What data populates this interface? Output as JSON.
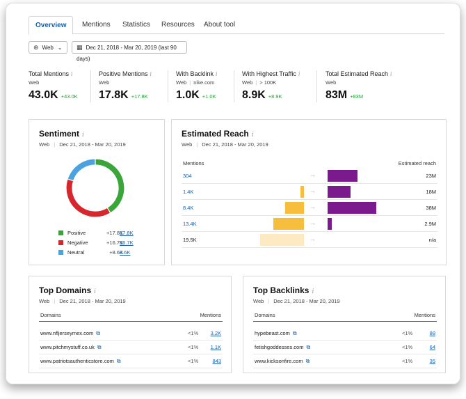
{
  "tabs": [
    "Overview",
    "Mentions",
    "Statistics",
    "Resources",
    "About tool"
  ],
  "filters": {
    "source": "Web",
    "date_range": "Dec 21, 2018 - Mar 20, 2019 (last 90 days)"
  },
  "info_glyph": "i",
  "metrics": [
    {
      "label": "Total Mentions",
      "sub": "Web",
      "sub2": "",
      "value": "43.0K",
      "delta": "+43.0K"
    },
    {
      "label": "Positive Mentions",
      "sub": "Web",
      "sub2": "",
      "value": "17.8K",
      "delta": "+17.8K"
    },
    {
      "label": "With Backlink",
      "sub": "Web",
      "sub2": "nike.com",
      "value": "1.0K",
      "delta": "+1.0K"
    },
    {
      "label": "With Highest Traffic",
      "sub": "Web",
      "sub2": "> 100K",
      "value": "8.9K",
      "delta": "+8.9K"
    },
    {
      "label": "Total Estimated Reach",
      "sub": "Web",
      "sub2": "",
      "value": "83M",
      "delta": "+83M"
    }
  ],
  "sentiment": {
    "title": "Sentiment",
    "source": "Web",
    "dates": "Dec 21, 2018 - Mar 20, 2019",
    "items": [
      {
        "name": "Positive",
        "delta": "+17.8K",
        "total": "17.8K",
        "value": 17.8,
        "color": "#3aa63a"
      },
      {
        "name": "Negative",
        "delta": "+16.7K",
        "total": "16.7K",
        "value": 16.7,
        "color": "#d6272e"
      },
      {
        "name": "Neutral",
        "delta": "+8.6K",
        "total": "8.6K",
        "value": 8.6,
        "color": "#4aa3e0"
      }
    ]
  },
  "reach": {
    "title": "Estimated Reach",
    "source": "Web",
    "dates": "Dec 21, 2018 - Mar 20, 2019",
    "col_mentions": "Mentions",
    "col_reach": "Estimated reach",
    "arrow": "→",
    "rows": [
      {
        "mentions": "304",
        "reach": "23M",
        "mention_level": 0.0,
        "reach_level": 0.61,
        "link": true
      },
      {
        "mentions": "1.4K",
        "reach": "18M",
        "mention_level": 0.07,
        "reach_level": 0.47,
        "link": true
      },
      {
        "mentions": "8.4K",
        "reach": "38M",
        "mention_level": 0.41,
        "reach_level": 1.0,
        "link": true
      },
      {
        "mentions": "13.4K",
        "reach": "2.9M",
        "mention_level": 0.66,
        "reach_level": 0.08,
        "link": true
      },
      {
        "mentions": "19.5K",
        "reach": "n/a",
        "mention_level": 0.96,
        "reach_level": 0.0,
        "link": false
      }
    ],
    "colors": {
      "mention_bar": "#f7bd3c",
      "mention_bar_light": "#fde9c2",
      "reach_bar": "#7a1a8c"
    }
  },
  "top_domains": {
    "title": "Top Domains",
    "source": "Web",
    "dates": "Dec 21, 2018 - Mar 20, 2019",
    "col_left": "Domains",
    "col_right": "Mentions",
    "ext_icon": "⧉",
    "rows": [
      {
        "domain": "www.nfljerseymex.com",
        "pct": "<1%",
        "mentions": "3.2K"
      },
      {
        "domain": "www.pitchmystuff.co.uk",
        "pct": "<1%",
        "mentions": "1.1K"
      },
      {
        "domain": "www.patriotsauthenticstore.com",
        "pct": "<1%",
        "mentions": "843"
      }
    ]
  },
  "top_backlinks": {
    "title": "Top Backlinks",
    "source": "Web",
    "dates": "Dec 21, 2018 - Mar 20, 2019",
    "col_left": "Domains",
    "col_right": "Mentions",
    "ext_icon": "⧉",
    "rows": [
      {
        "domain": "hypebeast.com",
        "pct": "<1%",
        "mentions": "88"
      },
      {
        "domain": "fetishgoddesses.com",
        "pct": "<1%",
        "mentions": "64"
      },
      {
        "domain": "www.kicksonfire.com",
        "pct": "<1%",
        "mentions": "35"
      }
    ]
  }
}
